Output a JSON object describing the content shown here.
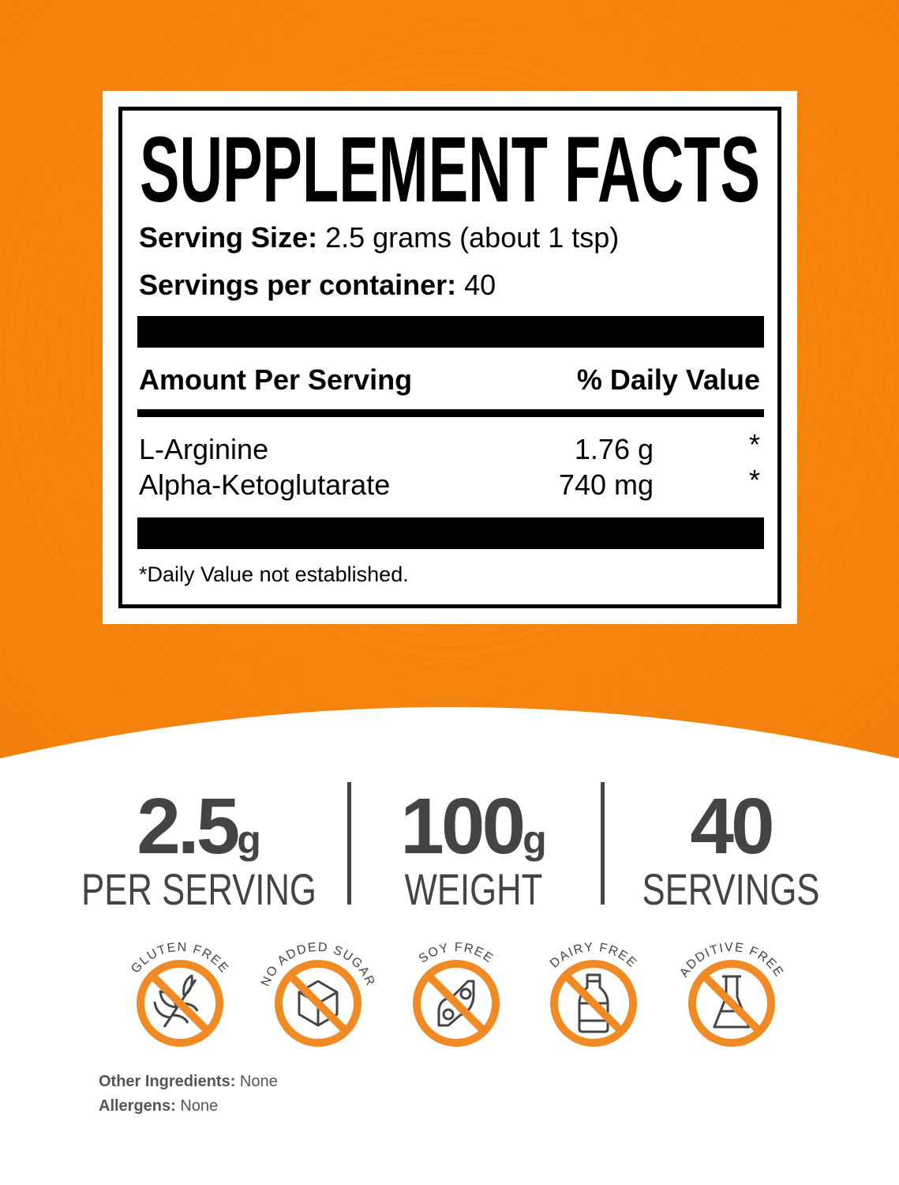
{
  "colors": {
    "orange": "#f5850f",
    "icon_orange": "#f08a24",
    "dark_gray": "#444444"
  },
  "facts": {
    "title": "SUPPLEMENT FACTS",
    "serving_size_label": "Serving Size:",
    "serving_size_value": "2.5 grams (about 1 tsp)",
    "servings_label": "Servings per container:",
    "servings_value": "40",
    "amount_header": "Amount Per Serving",
    "dv_header": "% Daily Value",
    "rows": [
      {
        "name": "L-Arginine",
        "amount": "1.76 g",
        "dv": "*"
      },
      {
        "name": "Alpha-Ketoglutarate",
        "amount": "740 mg",
        "dv": "*"
      }
    ],
    "footnote": "*Daily Value not established."
  },
  "stats": [
    {
      "number": "2.5",
      "unit": "g",
      "label": "PER SERVING"
    },
    {
      "number": "100",
      "unit": "g",
      "label": "WEIGHT"
    },
    {
      "number": "40",
      "unit": "",
      "label": "SERVINGS"
    }
  ],
  "badges": [
    {
      "text": "GLUTEN FREE",
      "icon": "wheat-icon"
    },
    {
      "text": "NO ADDED SUGAR",
      "icon": "sugar-cube-icon"
    },
    {
      "text": "SOY FREE",
      "icon": "soybean-icon"
    },
    {
      "text": "DAIRY FREE",
      "icon": "milk-bottle-icon"
    },
    {
      "text": "ADDITIVE FREE",
      "icon": "flask-icon"
    }
  ],
  "other_ingredients": {
    "label": "Other Ingredients:",
    "value": "None"
  },
  "allergens": {
    "label": "Allergens:",
    "value": "None"
  }
}
